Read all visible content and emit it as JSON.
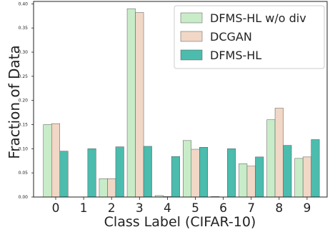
{
  "chart_data": {
    "type": "bar",
    "title": "",
    "xlabel": "Class Label (CIFAR-10)",
    "ylabel": "Fraction of Data",
    "categories": [
      "0",
      "1",
      "2",
      "3",
      "4",
      "5",
      "6",
      "7",
      "8",
      "9"
    ],
    "ylim": [
      0,
      0.405
    ],
    "yticks": [
      "0.00",
      "0.05",
      "0.10",
      "0.15",
      "0.20",
      "0.25",
      "0.30",
      "0.35",
      "0.40"
    ],
    "legend_position": "top-right",
    "grid": false,
    "series": [
      {
        "name": "DFMS-HL w/o div",
        "color": "#c8ecc8",
        "values": [
          0.15,
          0.0,
          0.038,
          0.39,
          0.003,
          0.117,
          0.001,
          0.069,
          0.16,
          0.08
        ]
      },
      {
        "name": "DCGAN",
        "color": "#f1d7c6",
        "values": [
          0.152,
          0.0,
          0.038,
          0.382,
          0.001,
          0.099,
          0.0,
          0.064,
          0.184,
          0.083
        ]
      },
      {
        "name": "DFMS-HL",
        "color": "#4bbcad",
        "values": [
          0.095,
          0.1,
          0.104,
          0.105,
          0.084,
          0.103,
          0.1,
          0.083,
          0.107,
          0.119
        ]
      }
    ]
  }
}
